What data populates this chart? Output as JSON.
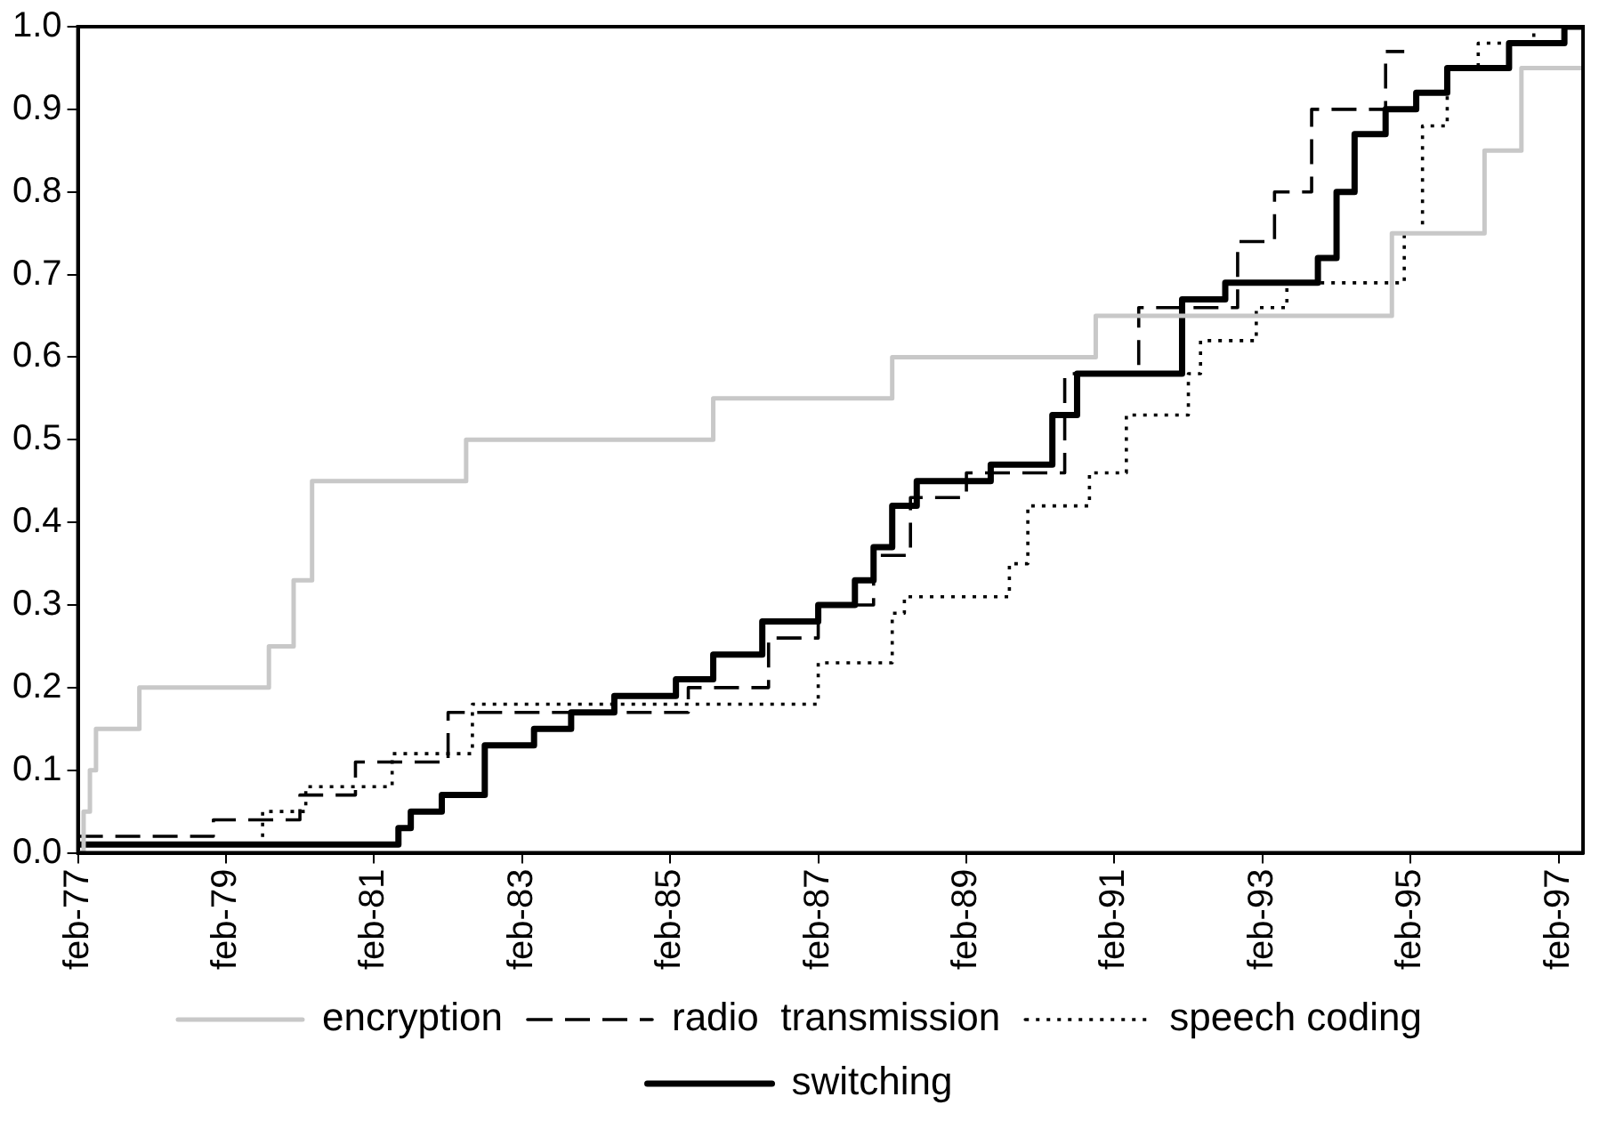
{
  "chart_data": {
    "type": "step",
    "legend": "bottom",
    "marker": "none",
    "grid": false,
    "xlim": [
      "1977-02",
      "1997-06"
    ],
    "ylim": [
      0,
      1
    ],
    "xticks": [
      {
        "value": "1977-02",
        "label": "feb-77"
      },
      {
        "value": "1979-02",
        "label": "feb-79"
      },
      {
        "value": "1981-02",
        "label": "feb-81"
      },
      {
        "value": "1983-02",
        "label": "feb-83"
      },
      {
        "value": "1985-02",
        "label": "feb-85"
      },
      {
        "value": "1987-02",
        "label": "feb-87"
      },
      {
        "value": "1989-02",
        "label": "feb-89"
      },
      {
        "value": "1991-02",
        "label": "feb-91"
      },
      {
        "value": "1993-02",
        "label": "feb-93"
      },
      {
        "value": "1995-02",
        "label": "feb-95"
      },
      {
        "value": "1997-02",
        "label": "feb-97"
      }
    ],
    "yticks": [
      {
        "value": 0,
        "label": "0.0"
      },
      0.1,
      0.2,
      0.3,
      0.4,
      0.5,
      0.6,
      0.7,
      0.8,
      0.9,
      {
        "value": 1,
        "label": "1.0"
      }
    ],
    "series": [
      {
        "name": "encryption",
        "color": "#c8c8c8",
        "line_style": "solid",
        "x": [
          "1977-02",
          "1977-03",
          "1977-04",
          "1977-05",
          "1977-12",
          "1979-09",
          "1980-01",
          "1980-04",
          "1982-05",
          "1985-09",
          "1988-02",
          "1990-11",
          "1994-11",
          "1996-02",
          "1996-08",
          "1997-06"
        ],
        "values": [
          0,
          0.05,
          0.1,
          0.15,
          0.2,
          0.25,
          0.33,
          0.45,
          0.5,
          0.55,
          0.6,
          0.65,
          0.75,
          0.85,
          0.95,
          0.95
        ]
      },
      {
        "name": "radio  transmission",
        "color": "#000000",
        "line_style": "dashed",
        "x": [
          "1977-02",
          "1978-12",
          "1980-02",
          "1980-11",
          "1982-02",
          "1985-05",
          "1986-06",
          "1987-02",
          "1987-11",
          "1988-05",
          "1989-02",
          "1990-06",
          "1991-06",
          "1992-10",
          "1993-04",
          "1993-10",
          "1994-10",
          "1995-01"
        ],
        "values": [
          0.02,
          0.04,
          0.07,
          0.11,
          0.17,
          0.2,
          0.26,
          0.3,
          0.36,
          0.43,
          0.46,
          0.58,
          0.66,
          0.74,
          0.8,
          0.9,
          0.97,
          0.97
        ]
      },
      {
        "name": "speech coding",
        "color": "#000000",
        "line_style": "dotted",
        "x": [
          "1977-02",
          "1979-08",
          "1980-03",
          "1981-05",
          "1982-06",
          "1987-02",
          "1988-02",
          "1988-04",
          "1989-09",
          "1989-12",
          "1990-10",
          "1991-04",
          "1992-02",
          "1992-04",
          "1993-01",
          "1993-06",
          "1995-01",
          "1995-04",
          "1995-08",
          "1996-01",
          "1996-10",
          "1997-06"
        ],
        "values": [
          0.01,
          0.05,
          0.08,
          0.12,
          0.18,
          0.23,
          0.29,
          0.31,
          0.35,
          0.42,
          0.46,
          0.53,
          0.58,
          0.62,
          0.66,
          0.69,
          0.75,
          0.88,
          0.95,
          0.98,
          1,
          1
        ]
      },
      {
        "name": "switching",
        "color": "#000000",
        "line_style": "solid",
        "x": [
          "1977-02",
          "1981-06",
          "1981-08",
          "1982-01",
          "1982-08",
          "1983-04",
          "1983-10",
          "1984-05",
          "1985-03",
          "1985-09",
          "1986-05",
          "1987-02",
          "1987-08",
          "1987-11",
          "1988-02",
          "1988-06",
          "1989-06",
          "1990-04",
          "1990-08",
          "1992-01",
          "1992-08",
          "1993-11",
          "1994-02",
          "1994-05",
          "1994-10",
          "1995-03",
          "1995-08",
          "1996-06",
          "1997-03",
          "1997-06"
        ],
        "values": [
          0.01,
          0.03,
          0.05,
          0.07,
          0.13,
          0.15,
          0.17,
          0.19,
          0.21,
          0.24,
          0.28,
          0.3,
          0.33,
          0.37,
          0.42,
          0.45,
          0.47,
          0.53,
          0.58,
          0.67,
          0.69,
          0.72,
          0.8,
          0.87,
          0.9,
          0.92,
          0.95,
          0.98,
          1,
          1
        ]
      }
    ]
  }
}
